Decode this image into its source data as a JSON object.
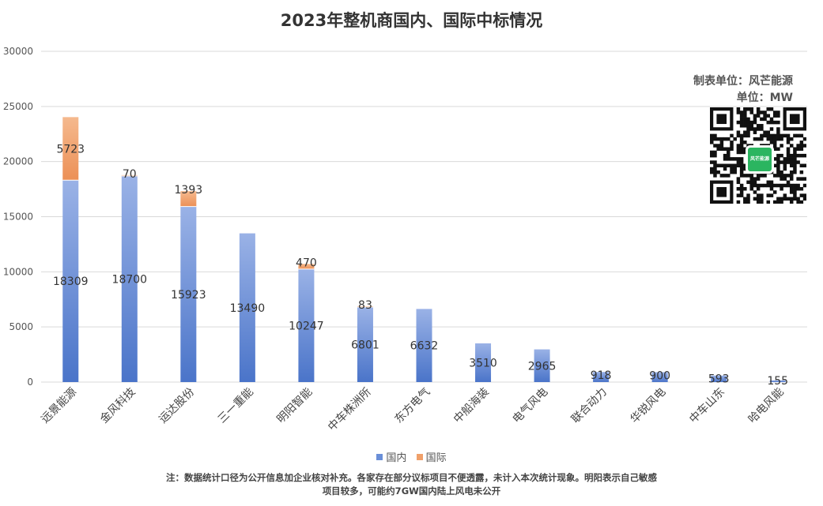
{
  "chart_data": {
    "type": "bar",
    "stacked": true,
    "title": "2023年整机商国内、国际中标情况",
    "categories": [
      "远景能源",
      "金风科技",
      "运达股份",
      "三一重能",
      "明阳智能",
      "中车株洲所",
      "东方电气",
      "中船海装",
      "电气风电",
      "联合动力",
      "华锐风电",
      "中车山东",
      "哈电风能"
    ],
    "series": [
      {
        "name": "国内",
        "color": "#6a8fd8",
        "values": [
          18309,
          18700,
          15923,
          13490,
          10247,
          6801,
          6632,
          3510,
          2965,
          918,
          900,
          593,
          155
        ]
      },
      {
        "name": "国际",
        "color": "#f0a06a",
        "values": [
          5723,
          70,
          1393,
          0,
          470,
          83,
          0,
          0,
          0,
          0,
          0,
          0,
          0
        ]
      }
    ],
    "data_labels": {
      "国内": [
        "18309",
        "18700",
        "15923",
        "13490",
        "10247",
        "6801",
        "6632",
        "3510",
        "2965",
        "918",
        "900",
        "593",
        "155"
      ],
      "国际": [
        "5723",
        "70",
        "1393",
        "",
        "470",
        "83",
        "",
        "",
        "",
        "",
        "",
        "",
        ""
      ]
    },
    "ylim": [
      0,
      30000
    ],
    "yticks": [
      "0",
      "5000",
      "10000",
      "15000",
      "20000",
      "25000",
      "30000"
    ],
    "grid": true,
    "legend_position": "bottom"
  },
  "credits": {
    "maker": "制表单位：风芒能源",
    "unit": "单位：MW"
  },
  "qr_logo_text": "风芒能源",
  "note": {
    "line1": "注：数据统计口径为公开信息加企业核对补充。各家存在部分议标项目不便透露，未计入本次统计现象。明阳表示自己敏感",
    "line2": "项目较多，可能约7GW国内陆上风电未公开"
  }
}
